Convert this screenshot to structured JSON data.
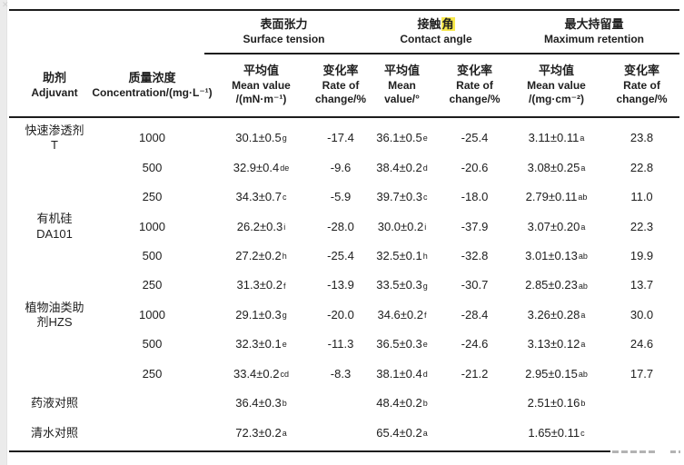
{
  "page": {
    "background": "#ffffff",
    "left_strip_color": "#ebebeb",
    "rule_color": "#1d1d1d",
    "highlight_color": "#f7e84b",
    "watermark_dash_color": "#b3b3b3",
    "corner_artifact": "✕"
  },
  "chart_data": {
    "type": "table",
    "header": {
      "adjuvant": {
        "zh": "助剂",
        "en": "Adjuvant"
      },
      "concentration": {
        "zh": "质量浓度",
        "en": "Concentration/(mg·L⁻¹)"
      },
      "groups": [
        {
          "zh": "表面张力",
          "en": "Surface tension"
        },
        {
          "zh_prefix": "接触",
          "zh_highlight": "角",
          "en": "Contact angle"
        },
        {
          "zh": "最大持留量",
          "en": "Maximum retention"
        }
      ],
      "subcols": [
        {
          "zh": "平均值",
          "en1": "Mean value",
          "en2": "/(mN·m⁻¹)"
        },
        {
          "zh": "变化率",
          "en1": "Rate of",
          "en2": "change/%"
        },
        {
          "zh": "平均值",
          "en1": "Mean",
          "en2": "value/°"
        },
        {
          "zh": "变化率",
          "en1": "Rate of",
          "en2": "change/%"
        },
        {
          "zh": "平均值",
          "en1": "Mean value",
          "en2": "/(mg·cm⁻²)"
        },
        {
          "zh": "变化率",
          "en1": "Rate of",
          "en2": "change/%"
        }
      ]
    },
    "rows": [
      {
        "adjuvant": [
          "快速渗透剂",
          "T"
        ],
        "conc": "1000",
        "st": "30.1±0.5",
        "st_sup": "g",
        "st_rate": "-17.4",
        "ca": "36.1±0.5",
        "ca_sup": "e",
        "ca_rate": "-25.4",
        "mr": "3.11±0.11",
        "mr_sup": "a",
        "mr_rate": "23.8"
      },
      {
        "adjuvant": [],
        "conc": "500",
        "st": "32.9±0.4",
        "st_sup": "de",
        "st_rate": "-9.6",
        "ca": "38.4±0.2",
        "ca_sup": "d",
        "ca_rate": "-20.6",
        "mr": "3.08±0.25",
        "mr_sup": "a",
        "mr_rate": "22.8"
      },
      {
        "adjuvant": [],
        "conc": "250",
        "st": "34.3±0.7",
        "st_sup": "c",
        "st_rate": "-5.9",
        "ca": "39.7±0.3",
        "ca_sup": "c",
        "ca_rate": "-18.0",
        "mr": "2.79±0.11",
        "mr_sup": "ab",
        "mr_rate": "11.0"
      },
      {
        "adjuvant": [
          "有机硅",
          "DA101"
        ],
        "conc": "1000",
        "st": "26.2±0.3",
        "st_sup": "i",
        "st_rate": "-28.0",
        "ca": "30.0±0.2",
        "ca_sup": "i",
        "ca_rate": "-37.9",
        "mr": "3.07±0.20",
        "mr_sup": "a",
        "mr_rate": "22.3"
      },
      {
        "adjuvant": [],
        "conc": "500",
        "st": "27.2±0.2",
        "st_sup": "h",
        "st_rate": "-25.4",
        "ca": "32.5±0.1",
        "ca_sup": "h",
        "ca_rate": "-32.8",
        "mr": "3.01±0.13",
        "mr_sup": "ab",
        "mr_rate": "19.9"
      },
      {
        "adjuvant": [],
        "conc": "250",
        "st": "31.3±0.2",
        "st_sup": "f",
        "st_rate": "-13.9",
        "ca": "33.5±0.3",
        "ca_sup": "g",
        "ca_rate": "-30.7",
        "mr": "2.85±0.23",
        "mr_sup": "ab",
        "mr_rate": "13.7"
      },
      {
        "adjuvant": [
          "植物油类助",
          "剂HZS"
        ],
        "conc": "1000",
        "st": "29.1±0.3",
        "st_sup": "g",
        "st_rate": "-20.0",
        "ca": "34.6±0.2",
        "ca_sup": "f",
        "ca_rate": "-28.4",
        "mr": "3.26±0.28",
        "mr_sup": "a",
        "mr_rate": "30.0"
      },
      {
        "adjuvant": [],
        "conc": "500",
        "st": "32.3±0.1",
        "st_sup": "e",
        "st_rate": "-11.3",
        "ca": "36.5±0.3",
        "ca_sup": "e",
        "ca_rate": "-24.6",
        "mr": "3.13±0.12",
        "mr_sup": "a",
        "mr_rate": "24.6"
      },
      {
        "adjuvant": [],
        "conc": "250",
        "st": "33.4±0.2",
        "st_sup": "cd",
        "st_rate": "-8.3",
        "ca": "38.1±0.4",
        "ca_sup": "d",
        "ca_rate": "-21.2",
        "mr": "2.95±0.15",
        "mr_sup": "ab",
        "mr_rate": "17.7"
      },
      {
        "adjuvant": [
          "药液对照"
        ],
        "conc": "",
        "st": "36.4±0.3",
        "st_sup": "b",
        "st_rate": "",
        "ca": "48.4±0.2",
        "ca_sup": "b",
        "ca_rate": "",
        "mr": "2.51±0.16",
        "mr_sup": "b",
        "mr_rate": ""
      },
      {
        "adjuvant": [
          "清水对照"
        ],
        "conc": "",
        "st": "72.3±0.2",
        "st_sup": "a",
        "st_rate": "",
        "ca": "65.4±0.2",
        "ca_sup": "a",
        "ca_rate": "",
        "mr": "1.65±0.11",
        "mr_sup": "c",
        "mr_rate": ""
      }
    ]
  }
}
